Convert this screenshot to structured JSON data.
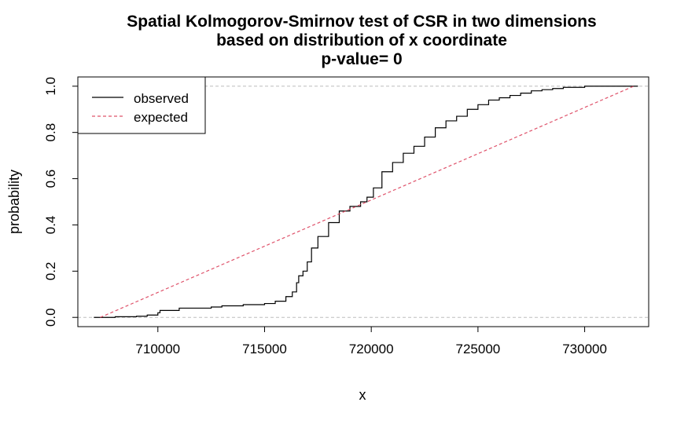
{
  "chart_data": {
    "type": "line",
    "title": "Spatial Kolmogorov-Smirnov test of CSR in two dimensions",
    "subtitle": "based on distribution of x coordinate",
    "subtitle2": "p-value= 0",
    "xlabel": "x",
    "ylabel": "probability",
    "xlim": [
      706250,
      733000
    ],
    "ylim": [
      -0.04,
      1.04
    ],
    "x_ticks": [
      710000,
      715000,
      720000,
      725000,
      730000
    ],
    "x_tick_labels": [
      "710000",
      "715000",
      "720000",
      "725000",
      "730000"
    ],
    "y_ticks": [
      0.0,
      0.2,
      0.4,
      0.6,
      0.8,
      1.0
    ],
    "y_tick_labels": [
      "0.0",
      "0.2",
      "0.4",
      "0.6",
      "0.8",
      "1.0"
    ],
    "reference_lines": [
      0,
      1
    ],
    "legend": {
      "position": "top-left",
      "entries": [
        "observed",
        "expected"
      ]
    },
    "colors": {
      "observed": "#000000",
      "expected": "#DF536B",
      "reference": "#BEBEBE"
    },
    "series": [
      {
        "name": "observed",
        "style": "step-solid",
        "x": [
          707000,
          708000,
          709000,
          709500,
          710000,
          710100,
          711000,
          712500,
          713000,
          714000,
          715000,
          715500,
          716000,
          716300,
          716500,
          716600,
          716800,
          717000,
          717200,
          717500,
          718000,
          718500,
          719000,
          719500,
          719800,
          720100,
          720500,
          721000,
          721500,
          722000,
          722500,
          723000,
          723500,
          724000,
          724500,
          725000,
          725500,
          726000,
          726500,
          727000,
          727500,
          728000,
          728500,
          729000,
          730000,
          731000,
          732500
        ],
        "y": [
          0.0,
          0.003,
          0.005,
          0.01,
          0.02,
          0.03,
          0.04,
          0.045,
          0.05,
          0.055,
          0.06,
          0.07,
          0.09,
          0.11,
          0.15,
          0.18,
          0.2,
          0.24,
          0.3,
          0.35,
          0.41,
          0.46,
          0.48,
          0.5,
          0.52,
          0.56,
          0.63,
          0.67,
          0.71,
          0.74,
          0.78,
          0.82,
          0.85,
          0.87,
          0.9,
          0.92,
          0.94,
          0.95,
          0.96,
          0.97,
          0.98,
          0.985,
          0.99,
          0.995,
          1.0,
          1.0,
          1.0
        ],
        "color": "#000000"
      },
      {
        "name": "expected",
        "style": "dashed",
        "x": [
          707300,
          732300
        ],
        "y": [
          0.0,
          1.0
        ],
        "color": "#DF536B"
      }
    ]
  }
}
